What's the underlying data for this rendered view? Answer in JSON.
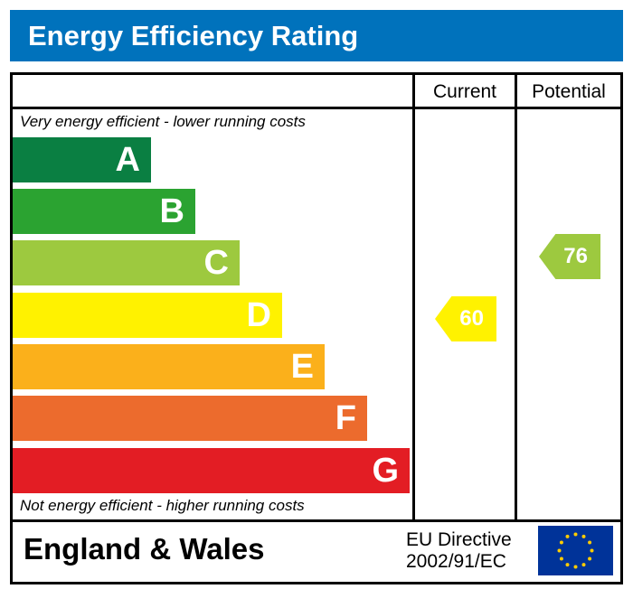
{
  "title": "Energy Efficiency Rating",
  "columns": {
    "current": "Current",
    "potential": "Potential"
  },
  "top_note": "Very energy efficient - lower running costs",
  "bottom_note": "Not energy efficient - higher running costs",
  "footer": {
    "region": "England & Wales",
    "directive_line1": "EU Directive",
    "directive_line2": "2002/91/EC",
    "flag_icon": "eu-flag-icon"
  },
  "chart_data": {
    "type": "bar",
    "title": "Energy Efficiency Rating",
    "categories": [
      "A",
      "B",
      "C",
      "D",
      "E",
      "F",
      "G"
    ],
    "colors": [
      "#008054",
      "#19b459",
      "#8dce46",
      "#ffd500",
      "#fcaa65",
      "#ef8023",
      "#e9153b"
    ],
    "bar_colors_observed": [
      "#0a7f42",
      "#2ba331",
      "#9dc93f",
      "#fff200",
      "#fbb01b",
      "#ec6b2d",
      "#e31d24"
    ],
    "current": {
      "value": 60,
      "band": "D",
      "color": "#fff200"
    },
    "potential": {
      "value": 76,
      "band": "C",
      "color": "#9dc93f"
    }
  }
}
